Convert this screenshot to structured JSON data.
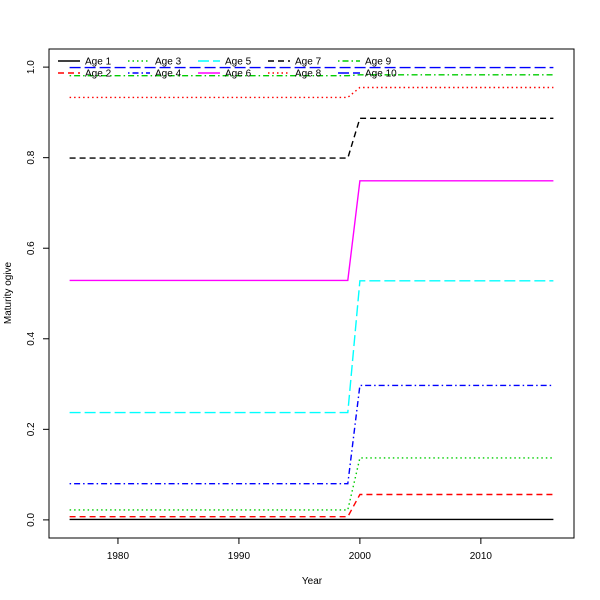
{
  "chart_data": {
    "type": "line",
    "title": "",
    "xlabel": "Year",
    "ylabel": "Maturity ogive",
    "xlim": [
      1974.3,
      2017.7
    ],
    "ylim": [
      -0.04,
      1.04
    ],
    "x_ticks": [
      1980,
      1990,
      2000,
      2010
    ],
    "y_ticks": [
      0.0,
      0.2,
      0.4,
      0.6,
      0.8,
      1.0
    ],
    "y_tick_labels": [
      "0.0",
      "0.2",
      "0.4",
      "0.6",
      "0.8",
      "1.0"
    ],
    "grid": false,
    "legend_placement": "top-left",
    "x": [
      1976,
      1999,
      2000,
      2016
    ],
    "series": [
      {
        "name": "Age 1",
        "color": "#000000",
        "dash": "solid",
        "values": [
          0.001,
          0.001,
          0.001,
          0.001
        ]
      },
      {
        "name": "Age 2",
        "color": "#ff0000",
        "dash": "dashed",
        "values": [
          0.007,
          0.007,
          0.056,
          0.056
        ]
      },
      {
        "name": "Age 3",
        "color": "#00cd00",
        "dash": "dotted",
        "values": [
          0.022,
          0.022,
          0.137,
          0.137
        ]
      },
      {
        "name": "Age 4",
        "color": "#0000ff",
        "dash": "dotdash",
        "values": [
          0.08,
          0.08,
          0.297,
          0.297
        ]
      },
      {
        "name": "Age 5",
        "color": "#00ffff",
        "dash": "longdash",
        "values": [
          0.237,
          0.237,
          0.528,
          0.528
        ]
      },
      {
        "name": "Age 6",
        "color": "#ff00ff",
        "dash": "solid",
        "values": [
          0.529,
          0.529,
          0.749,
          0.749
        ]
      },
      {
        "name": "Age 7",
        "color": "#000000",
        "dash": "dashed",
        "values": [
          0.799,
          0.799,
          0.887,
          0.887
        ]
      },
      {
        "name": "Age 8",
        "color": "#ff0000",
        "dash": "dotted",
        "values": [
          0.933,
          0.933,
          0.955,
          0.955
        ]
      },
      {
        "name": "Age 9",
        "color": "#00cd00",
        "dash": "dotdash",
        "values": [
          0.981,
          0.981,
          0.983,
          0.983
        ]
      },
      {
        "name": "Age 10",
        "color": "#0000ff",
        "dash": "longdash",
        "values": [
          0.999,
          0.999,
          0.999,
          0.999
        ]
      }
    ]
  }
}
